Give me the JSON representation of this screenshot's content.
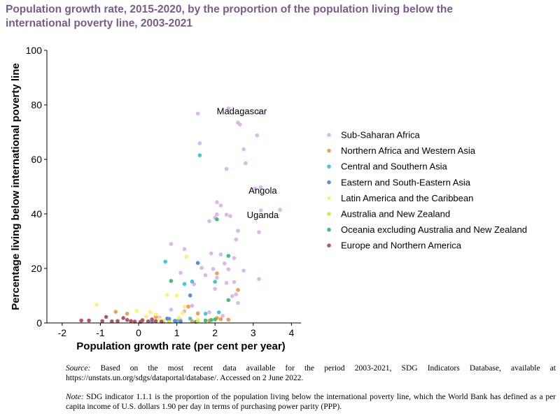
{
  "title": "Population growth rate, 2015-2020, by the proportion of the population living below the international poverty line, 2003-2021",
  "source_label": "Source:",
  "source_text": "Based on the most recent data available for the period 2003-2021, SDG Indicators Database, available at https://unstats.un.org/sdgs/dataportal/database/. Accessed on 2 June 2022.",
  "note_label": "Note:",
  "note_text": "SDG indicator 1.1.1 is the proportion of the population living below the international poverty line, which the World Bank has defined as a per capita income of U.S. dollars 1.90 per day in terms of purchasing power parity (PPP).",
  "chart_data": {
    "type": "scatter",
    "xlabel": "Population growth rate (per cent per year)",
    "ylabel": "Percentage living below international poverty line",
    "xlim": [
      -2.4,
      4.25
    ],
    "ylim": [
      0,
      100
    ],
    "xticks": [
      -2,
      -1,
      0,
      1,
      2,
      3,
      4
    ],
    "yticks": [
      0,
      20,
      40,
      60,
      80,
      100
    ],
    "grid": false,
    "legend_position": "right",
    "annotations": [
      {
        "text": "Madagascar",
        "x": 2.7,
        "y": 76.5
      },
      {
        "text": "Angola",
        "x": 3.25,
        "y": 47.5
      },
      {
        "text": "Uganda",
        "x": 3.25,
        "y": 38.5
      }
    ],
    "series": [
      {
        "name": "Sub-Saharan Africa",
        "color": "#dfb5ee",
        "points": [
          [
            1.55,
            76.8
          ],
          [
            2.35,
            78.7
          ],
          [
            2.6,
            73.5
          ],
          [
            2.65,
            72.8
          ],
          [
            3.15,
            77.2
          ],
          [
            3.1,
            68.8
          ],
          [
            1.6,
            65.9
          ],
          [
            2.75,
            63.7
          ],
          [
            2.8,
            58.6
          ],
          [
            2.3,
            56.5
          ],
          [
            3.05,
            49.3
          ],
          [
            3.2,
            49.8
          ],
          [
            3.7,
            41.5
          ],
          [
            3.2,
            41.3
          ],
          [
            2.05,
            44.3
          ],
          [
            2.15,
            43.1
          ],
          [
            2.3,
            39.7
          ],
          [
            2.4,
            39.2
          ],
          [
            2.05,
            39.8
          ],
          [
            1.85,
            37.3
          ],
          [
            2.0,
            38.6
          ],
          [
            3.15,
            33.3
          ],
          [
            2.6,
            33.8
          ],
          [
            2.55,
            30.6
          ],
          [
            0.85,
            29.0
          ],
          [
            1.2,
            27.1
          ],
          [
            1.9,
            25.5
          ],
          [
            2.15,
            25.1
          ],
          [
            2.5,
            23.8
          ],
          [
            2.25,
            21.8
          ],
          [
            1.65,
            20.2
          ],
          [
            1.95,
            19.8
          ],
          [
            2.35,
            19.7
          ],
          [
            2.75,
            19.2
          ],
          [
            1.1,
            18.4
          ],
          [
            1.75,
            17.5
          ],
          [
            2.05,
            16.6
          ],
          [
            2.5,
            15.0
          ],
          [
            3.15,
            16.1
          ],
          [
            2.3,
            14.7
          ],
          [
            1.45,
            14.2
          ],
          [
            2.0,
            12.5
          ],
          [
            2.55,
            10.5
          ],
          [
            2.45,
            9.8
          ],
          [
            2.6,
            7.3
          ],
          [
            1.4,
            6.3
          ],
          [
            0.85,
            4.9
          ],
          [
            1.2,
            4.3
          ],
          [
            1.85,
            3.9
          ],
          [
            2.2,
            2.6
          ],
          [
            0.55,
            1.9
          ],
          [
            1.1,
            1.1
          ]
        ]
      },
      {
        "name": "Northern Africa and Western Asia",
        "color": "#f0a050",
        "points": [
          [
            2.05,
            18.2
          ],
          [
            2.6,
            12.1
          ],
          [
            1.3,
            6.0
          ],
          [
            -0.3,
            3.4
          ],
          [
            -0.6,
            4.1
          ],
          [
            0.45,
            2.2
          ],
          [
            1.55,
            3.5
          ],
          [
            1.05,
            1.3
          ],
          [
            2.05,
            1.8
          ],
          [
            2.15,
            1.4
          ],
          [
            2.35,
            1.2
          ],
          [
            1.85,
            0.8
          ],
          [
            0.8,
            0.8
          ],
          [
            1.4,
            0.6
          ]
        ]
      },
      {
        "name": "Central and Southern Asia",
        "color": "#44c8d8",
        "points": [
          [
            1.6,
            61.5
          ],
          [
            0.7,
            22.5
          ],
          [
            1.2,
            14.3
          ],
          [
            1.4,
            15.2
          ],
          [
            2.0,
            15.1
          ],
          [
            1.75,
            3.4
          ],
          [
            2.1,
            3.9
          ],
          [
            1.35,
            1.6
          ],
          [
            1.0,
            0.6
          ],
          [
            0.65,
            0.5
          ]
        ]
      },
      {
        "name": "Eastern and South-Eastern Asia",
        "color": "#5590d8",
        "points": [
          [
            1.55,
            22.0
          ],
          [
            1.35,
            10.1
          ],
          [
            0.8,
            1.5
          ],
          [
            0.75,
            1.6
          ],
          [
            0.95,
            0.8
          ],
          [
            0.35,
            0.5
          ],
          [
            1.1,
            0.5
          ],
          [
            1.5,
            0.4
          ]
        ]
      },
      {
        "name": "Latin America and the Caribbean",
        "color": "#fff078",
        "points": [
          [
            -1.1,
            6.7
          ],
          [
            -0.05,
            4.4
          ],
          [
            0.3,
            4.0
          ],
          [
            1.2,
            5.9
          ],
          [
            1.15,
            3.6
          ],
          [
            1.0,
            10.1
          ],
          [
            0.75,
            10.3
          ],
          [
            1.25,
            24.3
          ],
          [
            0.45,
            3.1
          ],
          [
            0.2,
            2.4
          ],
          [
            0.55,
            1.4
          ],
          [
            1.05,
            2.0
          ],
          [
            1.55,
            1.3
          ],
          [
            0.1,
            0.7
          ],
          [
            0.65,
            0.9
          ]
        ]
      },
      {
        "name": "Australia and New Zealand",
        "color": "#d8e838",
        "points": [
          [
            0.8,
            0.4
          ],
          [
            1.55,
            0.5
          ]
        ]
      },
      {
        "name": "Oceania excluding Australia and New Zealand",
        "color": "#40c070",
        "points": [
          [
            2.05,
            38.0
          ],
          [
            0.85,
            15.4
          ],
          [
            2.35,
            24.6
          ],
          [
            2.35,
            8.4
          ],
          [
            1.9,
            1.1
          ],
          [
            2.0,
            1.3
          ],
          [
            1.75,
            0.9
          ]
        ]
      },
      {
        "name": "Europe and Northern America",
        "color": "#b05868",
        "points": [
          [
            -1.5,
            0.9
          ],
          [
            -1.3,
            0.9
          ],
          [
            -0.85,
            2.2
          ],
          [
            -0.95,
            0.7
          ],
          [
            -0.55,
            0.7
          ],
          [
            -0.4,
            1.8
          ],
          [
            -0.2,
            0.7
          ],
          [
            0.1,
            1.0
          ],
          [
            0.25,
            0.6
          ],
          [
            0.35,
            1.3
          ],
          [
            -0.7,
            0.6
          ],
          [
            0.6,
            0.5
          ],
          [
            0.45,
            0.7
          ],
          [
            -0.1,
            0.5
          ],
          [
            -0.3,
            1.1
          ],
          [
            0.05,
            0.4
          ]
        ]
      }
    ]
  }
}
